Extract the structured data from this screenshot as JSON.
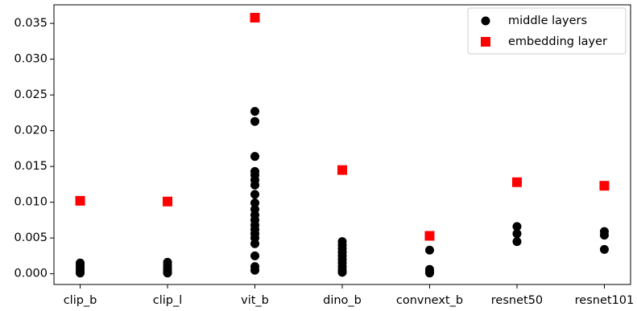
{
  "chart_data": {
    "type": "scatter",
    "categories": [
      "clip_b",
      "clip_l",
      "vit_b",
      "dino_b",
      "convnext_b",
      "resnet50",
      "resnet101"
    ],
    "series": [
      {
        "name": "middle layers",
        "color": "#000000",
        "marker": "circle",
        "values": [
          [
            0.0015,
            0.0012,
            0.0009,
            0.0006,
            0.0003,
            0.0001
          ],
          [
            0.0016,
            0.0012,
            0.0008,
            0.0005,
            0.0002,
            0.0001
          ],
          [
            0.0227,
            0.0213,
            0.0164,
            0.0143,
            0.0138,
            0.0131,
            0.0124,
            0.0111,
            0.0099,
            0.009,
            0.0082,
            0.0075,
            0.0068,
            0.0062,
            0.0056,
            0.005,
            0.0042,
            0.0025,
            0.001,
            0.0005
          ],
          [
            0.0045,
            0.004,
            0.0035,
            0.003,
            0.0025,
            0.002,
            0.0015,
            0.001,
            0.0005,
            0.0002
          ],
          [
            0.0033,
            0.0006,
            0.0003,
            0.0001
          ],
          [
            0.0066,
            0.0056,
            0.0045
          ],
          [
            0.0059,
            0.0054,
            0.0034
          ]
        ]
      },
      {
        "name": "embedding layer",
        "color": "#ff0000",
        "marker": "square",
        "values": [
          0.0102,
          0.0101,
          0.0358,
          0.0145,
          0.0053,
          0.0128,
          0.0123
        ]
      }
    ],
    "ylim": [
      -0.0015,
      0.0376
    ],
    "yticks": [
      {
        "value": 0,
        "label": "0.000"
      },
      0.005,
      {
        "value": 0.01,
        "label": "0.010"
      },
      0.015,
      {
        "value": 0.02,
        "label": "0.020"
      },
      0.025,
      {
        "value": 0.03,
        "label": "0.030"
      },
      0.035
    ],
    "legend": "upper right"
  }
}
